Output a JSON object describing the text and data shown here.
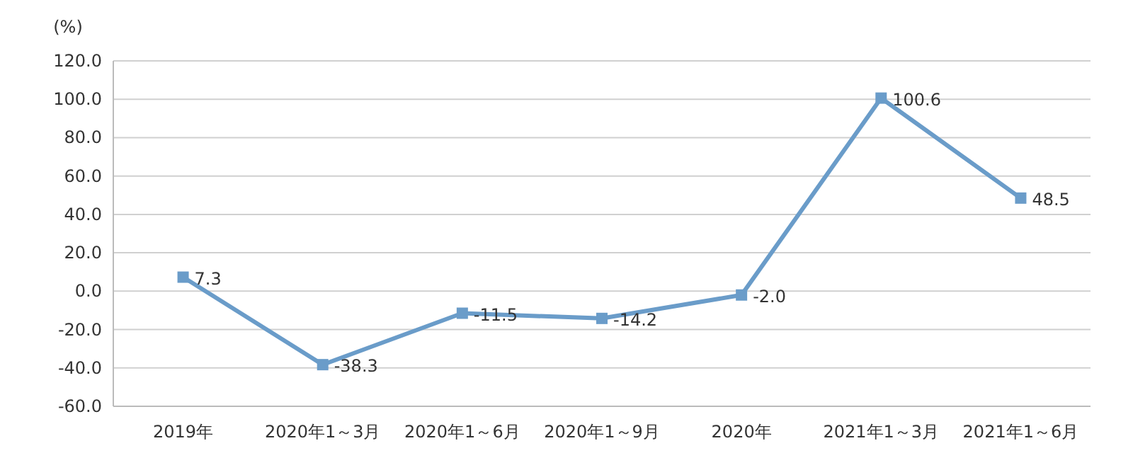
{
  "chart_data": {
    "type": "line",
    "ylabel": "(%)",
    "categories": [
      "2019年",
      "2020年1～3月",
      "2020年1～6月",
      "2020年1～9月",
      "2020年",
      "2021年1～3月",
      "2021年1～6月"
    ],
    "series": [
      {
        "color": "#6a9cc9",
        "values": [
          7.3,
          -38.3,
          -11.5,
          -14.2,
          -2.0,
          100.6,
          48.5
        ],
        "value_labels": [
          "7.3",
          "-38.3",
          "-11.5",
          "-14.2",
          "-2.0",
          "100.6",
          "48.5"
        ]
      }
    ],
    "ylim": [
      -60,
      120
    ],
    "yticks": [
      {
        "value": -60,
        "label": "-60.0"
      },
      {
        "value": -40,
        "label": "-40.0"
      },
      {
        "value": -20,
        "label": "-20.0"
      },
      {
        "value": 0,
        "label": "0.0"
      },
      {
        "value": 20,
        "label": "20.0"
      },
      {
        "value": 40,
        "label": "40.0"
      },
      {
        "value": 60,
        "label": "60.0"
      },
      {
        "value": 80,
        "label": "80.0"
      },
      {
        "value": 100,
        "label": "100.0"
      },
      {
        "value": 120,
        "label": "120.0"
      }
    ],
    "grid": "y",
    "marker": "square",
    "line_style": "solid"
  }
}
